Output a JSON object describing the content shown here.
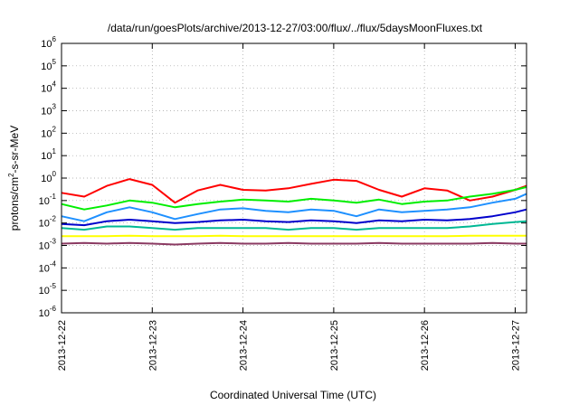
{
  "chart_data": {
    "type": "line",
    "title": "/data/run/goesPlots/archive/2013-12-27/03:00/flux/../flux/5daysMoonFluxes.txt",
    "xlabel": "Coordinated Universal Time (UTC)",
    "ylabel": {
      "base": "protons/cm",
      "sup": "2",
      "rest": "-s-sr-MeV"
    },
    "yscale": "log",
    "ylim": [
      1e-06,
      1000000.0
    ],
    "y_ticks": [
      {
        "exp": "-6",
        "value": 1e-06
      },
      {
        "exp": "-5",
        "value": 1e-05
      },
      {
        "exp": "-4",
        "value": 0.0001
      },
      {
        "exp": "-3",
        "value": 0.001
      },
      {
        "exp": "-2",
        "value": 0.01
      },
      {
        "exp": "-1",
        "value": 0.1
      },
      {
        "exp": "0",
        "value": 1
      },
      {
        "exp": "1",
        "value": 10.0
      },
      {
        "exp": "2",
        "value": 100.0
      },
      {
        "exp": "3",
        "value": 1000.0
      },
      {
        "exp": "4",
        "value": 10000.0
      },
      {
        "exp": "5",
        "value": 100000.0
      },
      {
        "exp": "6",
        "value": 1000000.0
      }
    ],
    "tick_base": "10",
    "xlim": [
      "2013-12-22",
      "2013-12-27 03:00"
    ],
    "x_ticks": [
      "2013-12-22",
      "2013-12-23",
      "2013-12-24",
      "2013-12-25",
      "2013-12-26",
      "2013-12-27"
    ],
    "grid": true,
    "series": [
      {
        "color": "#ff0000",
        "x": [
          "2013-12-22 00:00",
          "2013-12-22 06:00",
          "2013-12-22 12:00",
          "2013-12-22 18:00",
          "2013-12-23 00:00",
          "2013-12-23 06:00",
          "2013-12-23 12:00",
          "2013-12-23 18:00",
          "2013-12-24 00:00",
          "2013-12-24 06:00",
          "2013-12-24 12:00",
          "2013-12-24 18:00",
          "2013-12-25 00:00",
          "2013-12-25 06:00",
          "2013-12-25 12:00",
          "2013-12-25 18:00",
          "2013-12-26 00:00",
          "2013-12-26 06:00",
          "2013-12-26 12:00",
          "2013-12-26 18:00",
          "2013-12-27 00:00",
          "2013-12-27 03:00"
        ],
        "y": [
          0.22,
          0.15,
          0.45,
          0.9,
          0.5,
          0.08,
          0.28,
          0.5,
          0.3,
          0.28,
          0.35,
          0.55,
          0.85,
          0.75,
          0.3,
          0.15,
          0.35,
          0.28,
          0.1,
          0.15,
          0.3,
          0.45
        ]
      },
      {
        "color": "#00ee00",
        "x": [
          "2013-12-22 00:00",
          "2013-12-22 06:00",
          "2013-12-22 12:00",
          "2013-12-22 18:00",
          "2013-12-23 00:00",
          "2013-12-23 06:00",
          "2013-12-23 12:00",
          "2013-12-23 18:00",
          "2013-12-24 00:00",
          "2013-12-24 06:00",
          "2013-12-24 12:00",
          "2013-12-24 18:00",
          "2013-12-25 00:00",
          "2013-12-25 06:00",
          "2013-12-25 12:00",
          "2013-12-25 18:00",
          "2013-12-26 00:00",
          "2013-12-26 06:00",
          "2013-12-26 12:00",
          "2013-12-26 18:00",
          "2013-12-27 00:00",
          "2013-12-27 03:00"
        ],
        "y": [
          0.07,
          0.04,
          0.06,
          0.1,
          0.08,
          0.05,
          0.07,
          0.09,
          0.11,
          0.1,
          0.09,
          0.12,
          0.1,
          0.08,
          0.11,
          0.07,
          0.09,
          0.1,
          0.15,
          0.2,
          0.3,
          0.4
        ]
      },
      {
        "color": "#1e90ff",
        "x": [
          "2013-12-22 00:00",
          "2013-12-22 06:00",
          "2013-12-22 12:00",
          "2013-12-22 18:00",
          "2013-12-23 00:00",
          "2013-12-23 06:00",
          "2013-12-23 12:00",
          "2013-12-23 18:00",
          "2013-12-24 00:00",
          "2013-12-24 06:00",
          "2013-12-24 12:00",
          "2013-12-24 18:00",
          "2013-12-25 00:00",
          "2013-12-25 06:00",
          "2013-12-25 12:00",
          "2013-12-25 18:00",
          "2013-12-26 00:00",
          "2013-12-26 06:00",
          "2013-12-26 12:00",
          "2013-12-26 18:00",
          "2013-12-27 00:00",
          "2013-12-27 03:00"
        ],
        "y": [
          0.02,
          0.012,
          0.03,
          0.05,
          0.03,
          0.015,
          0.025,
          0.04,
          0.045,
          0.035,
          0.03,
          0.04,
          0.035,
          0.02,
          0.04,
          0.03,
          0.035,
          0.04,
          0.05,
          0.08,
          0.12,
          0.2
        ]
      },
      {
        "color": "#0000cc",
        "x": [
          "2013-12-22 00:00",
          "2013-12-22 06:00",
          "2013-12-22 12:00",
          "2013-12-22 18:00",
          "2013-12-23 00:00",
          "2013-12-23 06:00",
          "2013-12-23 12:00",
          "2013-12-23 18:00",
          "2013-12-24 00:00",
          "2013-12-24 06:00",
          "2013-12-24 12:00",
          "2013-12-24 18:00",
          "2013-12-25 00:00",
          "2013-12-25 06:00",
          "2013-12-25 12:00",
          "2013-12-25 18:00",
          "2013-12-26 00:00",
          "2013-12-26 06:00",
          "2013-12-26 12:00",
          "2013-12-26 18:00",
          "2013-12-27 00:00",
          "2013-12-27 03:00"
        ],
        "y": [
          0.009,
          0.008,
          0.012,
          0.014,
          0.012,
          0.01,
          0.011,
          0.013,
          0.014,
          0.012,
          0.011,
          0.013,
          0.012,
          0.01,
          0.013,
          0.012,
          0.014,
          0.013,
          0.015,
          0.02,
          0.03,
          0.04
        ]
      },
      {
        "color": "#00b894",
        "x": [
          "2013-12-22 00:00",
          "2013-12-22 06:00",
          "2013-12-22 12:00",
          "2013-12-22 18:00",
          "2013-12-23 00:00",
          "2013-12-23 06:00",
          "2013-12-23 12:00",
          "2013-12-23 18:00",
          "2013-12-24 00:00",
          "2013-12-24 06:00",
          "2013-12-24 12:00",
          "2013-12-24 18:00",
          "2013-12-25 00:00",
          "2013-12-25 06:00",
          "2013-12-25 12:00",
          "2013-12-25 18:00",
          "2013-12-26 00:00",
          "2013-12-26 06:00",
          "2013-12-26 12:00",
          "2013-12-26 18:00",
          "2013-12-27 00:00",
          "2013-12-27 03:00"
        ],
        "y": [
          0.006,
          0.005,
          0.007,
          0.007,
          0.006,
          0.005,
          0.006,
          0.006,
          0.006,
          0.006,
          0.005,
          0.006,
          0.006,
          0.005,
          0.006,
          0.006,
          0.006,
          0.006,
          0.007,
          0.009,
          0.011,
          0.012
        ]
      },
      {
        "color": "#ffff00",
        "x": [
          "2013-12-22 00:00",
          "2013-12-22 06:00",
          "2013-12-22 12:00",
          "2013-12-22 18:00",
          "2013-12-23 00:00",
          "2013-12-23 06:00",
          "2013-12-23 12:00",
          "2013-12-23 18:00",
          "2013-12-24 00:00",
          "2013-12-24 06:00",
          "2013-12-24 12:00",
          "2013-12-24 18:00",
          "2013-12-25 00:00",
          "2013-12-25 06:00",
          "2013-12-25 12:00",
          "2013-12-25 18:00",
          "2013-12-26 00:00",
          "2013-12-26 06:00",
          "2013-12-26 12:00",
          "2013-12-26 18:00",
          "2013-12-27 00:00",
          "2013-12-27 03:00"
        ],
        "y": [
          0.0026,
          0.0026,
          0.0026,
          0.0027,
          0.0026,
          0.0026,
          0.0026,
          0.0027,
          0.0026,
          0.0026,
          0.0026,
          0.0026,
          0.0026,
          0.0026,
          0.0026,
          0.0026,
          0.0026,
          0.0026,
          0.0027,
          0.0027,
          0.0027,
          0.0027
        ]
      },
      {
        "color": "#8b3a62",
        "x": [
          "2013-12-22 00:00",
          "2013-12-22 06:00",
          "2013-12-22 12:00",
          "2013-12-22 18:00",
          "2013-12-23 00:00",
          "2013-12-23 06:00",
          "2013-12-23 12:00",
          "2013-12-23 18:00",
          "2013-12-24 00:00",
          "2013-12-24 06:00",
          "2013-12-24 12:00",
          "2013-12-24 18:00",
          "2013-12-25 00:00",
          "2013-12-25 06:00",
          "2013-12-25 12:00",
          "2013-12-25 18:00",
          "2013-12-26 00:00",
          "2013-12-26 06:00",
          "2013-12-26 12:00",
          "2013-12-26 18:00",
          "2013-12-27 00:00",
          "2013-12-27 03:00"
        ],
        "y": [
          0.0012,
          0.0013,
          0.0012,
          0.0013,
          0.0012,
          0.0011,
          0.0012,
          0.0013,
          0.0012,
          0.0012,
          0.0013,
          0.0012,
          0.0012,
          0.0012,
          0.0013,
          0.0012,
          0.0012,
          0.0012,
          0.0012,
          0.0013,
          0.0012,
          0.0012
        ]
      }
    ]
  }
}
